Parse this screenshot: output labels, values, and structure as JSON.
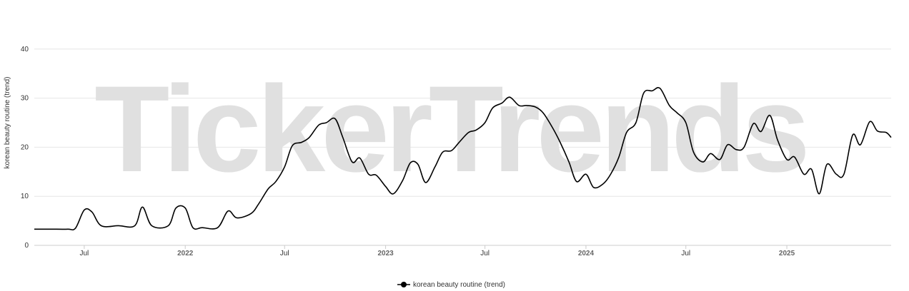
{
  "watermark": "TickerTrends",
  "colors": {
    "line": "#000000",
    "grid": "#e6e6e6",
    "axis": "#cccccc",
    "watermark": "#e0e0e0"
  },
  "chart_data": {
    "type": "line",
    "title": "",
    "xlabel": "",
    "ylabel": "korean beauty routine  (trend)",
    "ylim": [
      0,
      50
    ],
    "y_ticks": [
      0,
      10,
      20,
      30,
      40
    ],
    "x_range": [
      "2021-04-01",
      "2025-07-10"
    ],
    "x_ticks": [
      {
        "date": "2021-07-01",
        "label": "Jul",
        "bold": false
      },
      {
        "date": "2022-01-01",
        "label": "2022",
        "bold": true
      },
      {
        "date": "2022-07-01",
        "label": "Jul",
        "bold": false
      },
      {
        "date": "2023-01-01",
        "label": "2023",
        "bold": true
      },
      {
        "date": "2023-07-01",
        "label": "Jul",
        "bold": false
      },
      {
        "date": "2024-01-01",
        "label": "2024",
        "bold": true
      },
      {
        "date": "2024-07-01",
        "label": "Jul",
        "bold": false
      },
      {
        "date": "2025-01-01",
        "label": "2025",
        "bold": true
      }
    ],
    "legend": {
      "position": "bottom-center"
    },
    "series": [
      {
        "name": "korean beauty routine  (trend)",
        "points": [
          [
            "2021-04-01",
            3.3
          ],
          [
            "2021-05-01",
            3.3
          ],
          [
            "2021-06-01",
            3.3
          ],
          [
            "2021-06-15",
            3.5
          ],
          [
            "2021-07-01",
            7.2
          ],
          [
            "2021-07-15",
            6.8
          ],
          [
            "2021-08-01",
            4.0
          ],
          [
            "2021-09-01",
            4.0
          ],
          [
            "2021-10-01",
            4.0
          ],
          [
            "2021-10-15",
            7.8
          ],
          [
            "2021-11-01",
            4.0
          ],
          [
            "2021-12-01",
            4.0
          ],
          [
            "2021-12-15",
            7.6
          ],
          [
            "2022-01-01",
            7.6
          ],
          [
            "2022-01-15",
            3.6
          ],
          [
            "2022-02-01",
            3.6
          ],
          [
            "2022-03-01",
            3.6
          ],
          [
            "2022-03-20",
            7.0
          ],
          [
            "2022-04-05",
            5.6
          ],
          [
            "2022-05-01",
            6.5
          ],
          [
            "2022-05-15",
            8.5
          ],
          [
            "2022-06-01",
            11.5
          ],
          [
            "2022-06-15",
            13.0
          ],
          [
            "2022-07-01",
            16.0
          ],
          [
            "2022-07-15",
            20.3
          ],
          [
            "2022-08-01",
            21.0
          ],
          [
            "2022-08-15",
            22.0
          ],
          [
            "2022-09-01",
            24.5
          ],
          [
            "2022-09-15",
            25.0
          ],
          [
            "2022-10-01",
            25.8
          ],
          [
            "2022-10-15",
            22.0
          ],
          [
            "2022-11-01",
            17.0
          ],
          [
            "2022-11-15",
            17.8
          ],
          [
            "2022-12-01",
            14.5
          ],
          [
            "2022-12-15",
            14.3
          ],
          [
            "2023-01-01",
            12.0
          ],
          [
            "2023-01-15",
            10.5
          ],
          [
            "2023-02-01",
            13.2
          ],
          [
            "2023-02-15",
            16.8
          ],
          [
            "2023-03-01",
            16.5
          ],
          [
            "2023-03-15",
            12.8
          ],
          [
            "2023-04-01",
            16.0
          ],
          [
            "2023-04-15",
            19.0
          ],
          [
            "2023-05-01",
            19.3
          ],
          [
            "2023-05-15",
            21.0
          ],
          [
            "2023-06-01",
            23.0
          ],
          [
            "2023-06-15",
            23.5
          ],
          [
            "2023-07-01",
            25.0
          ],
          [
            "2023-07-15",
            28.0
          ],
          [
            "2023-08-01",
            29.0
          ],
          [
            "2023-08-15",
            30.2
          ],
          [
            "2023-09-01",
            28.5
          ],
          [
            "2023-09-15",
            28.5
          ],
          [
            "2023-10-01",
            28.2
          ],
          [
            "2023-10-15",
            27.0
          ],
          [
            "2023-11-01",
            24.0
          ],
          [
            "2023-11-15",
            21.0
          ],
          [
            "2023-12-01",
            17.0
          ],
          [
            "2023-12-15",
            13.0
          ],
          [
            "2024-01-01",
            14.5
          ],
          [
            "2024-01-15",
            11.8
          ],
          [
            "2024-02-01",
            12.5
          ],
          [
            "2024-02-15",
            14.5
          ],
          [
            "2024-03-01",
            18.0
          ],
          [
            "2024-03-15",
            23.0
          ],
          [
            "2024-04-01",
            25.0
          ],
          [
            "2024-04-15",
            31.0
          ],
          [
            "2024-05-01",
            31.5
          ],
          [
            "2024-05-15",
            32.0
          ],
          [
            "2024-06-01",
            28.5
          ],
          [
            "2024-06-15",
            27.0
          ],
          [
            "2024-07-01",
            25.0
          ],
          [
            "2024-07-15",
            19.0
          ],
          [
            "2024-08-01",
            17.0
          ],
          [
            "2024-08-15",
            18.7
          ],
          [
            "2024-09-01",
            17.5
          ],
          [
            "2024-09-15",
            20.5
          ],
          [
            "2024-10-01",
            19.5
          ],
          [
            "2024-10-15",
            20.0
          ],
          [
            "2024-11-01",
            24.8
          ],
          [
            "2024-11-15",
            23.2
          ],
          [
            "2024-12-01",
            26.5
          ],
          [
            "2024-12-15",
            21.5
          ],
          [
            "2025-01-01",
            17.5
          ],
          [
            "2025-01-15",
            18.0
          ],
          [
            "2025-02-01",
            14.5
          ],
          [
            "2025-02-15",
            15.5
          ],
          [
            "2025-03-01",
            10.5
          ],
          [
            "2025-03-15",
            16.5
          ],
          [
            "2025-04-01",
            14.5
          ],
          [
            "2025-04-15",
            14.5
          ],
          [
            "2025-05-01",
            22.5
          ],
          [
            "2025-05-15",
            20.5
          ],
          [
            "2025-06-01",
            25.2
          ],
          [
            "2025-06-15",
            23.3
          ],
          [
            "2025-07-01",
            23.0
          ],
          [
            "2025-07-10",
            22.0
          ]
        ]
      }
    ]
  }
}
